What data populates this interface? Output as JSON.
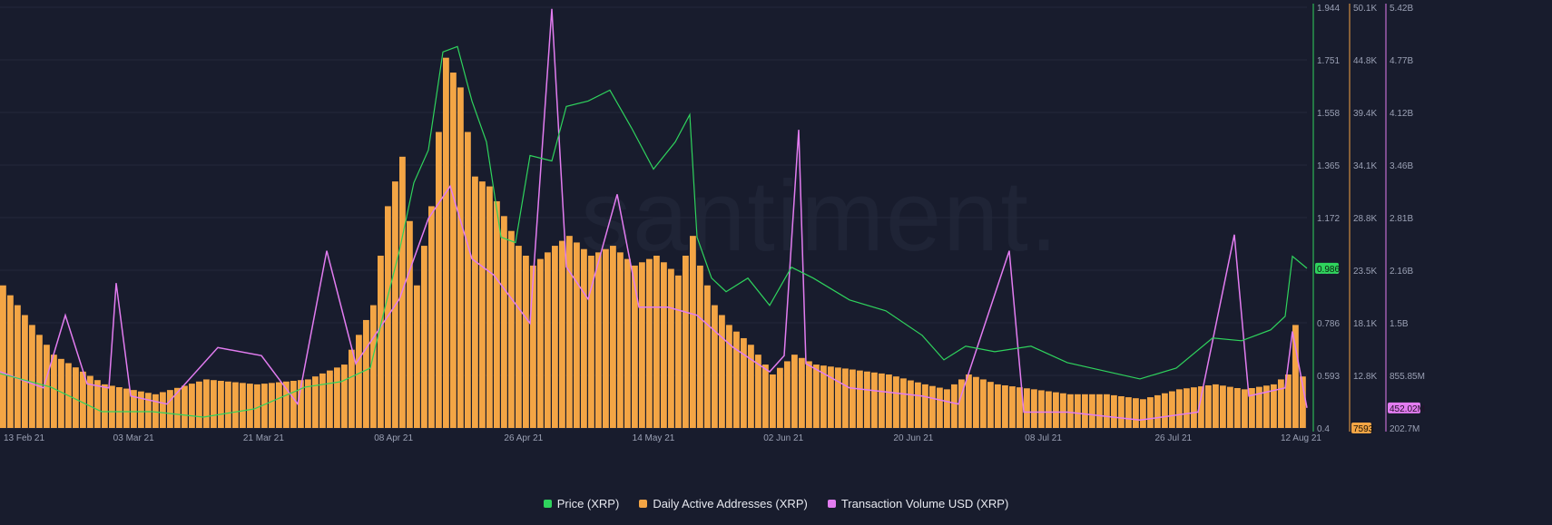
{
  "watermark": "santiment.",
  "colors": {
    "background": "#181c2d",
    "price": "#2fd35d",
    "addresses": "#f3a545",
    "volume": "#e27cf0",
    "grid": "#23283a"
  },
  "chart_data": {
    "type": "bar",
    "title": "",
    "x_tick_labels": [
      "13 Feb 21",
      "03 Mar 21",
      "21 Mar 21",
      "08 Apr 21",
      "26 Apr 21",
      "14 May 21",
      "02 Jun 21",
      "20 Jun 21",
      "08 Jul 21",
      "26 Jul 21",
      "12 Aug 21"
    ],
    "x_range": [
      "2021-02-13",
      "2021-08-12"
    ],
    "grid": true,
    "legend_position": "bottom",
    "axes": {
      "price": {
        "ticks": [
          "1.944",
          "1.751",
          "1.558",
          "1.365",
          "1.172",
          "0.979",
          "0.786",
          "0.593",
          "0.4"
        ],
        "ylim": [
          0.4,
          1.944
        ],
        "current_label": "0.986"
      },
      "addresses": {
        "ticks": [
          "50.1K",
          "44.8K",
          "39.4K",
          "34.1K",
          "28.8K",
          "23.5K",
          "18.1K",
          "12.8K"
        ],
        "ylim": [
          7593,
          50100
        ],
        "current_label": "7593"
      },
      "volume": {
        "ticks": [
          "5.42B",
          "4.77B",
          "4.12B",
          "3.46B",
          "2.81B",
          "2.16B",
          "1.5B",
          "855.85M",
          "202.7M"
        ],
        "ylim": [
          202700000,
          5420000000
        ],
        "current_label": "452.02M"
      }
    },
    "series": [
      {
        "name": "Price (XRP)",
        "kind": "line",
        "axis": "price",
        "points": [
          [
            "2021-02-13",
            0.6
          ],
          [
            "2021-02-20",
            0.55
          ],
          [
            "2021-02-27",
            0.46
          ],
          [
            "2021-03-06",
            0.46
          ],
          [
            "2021-03-13",
            0.44
          ],
          [
            "2021-03-20",
            0.47
          ],
          [
            "2021-03-27",
            0.55
          ],
          [
            "2021-04-01",
            0.57
          ],
          [
            "2021-04-05",
            0.62
          ],
          [
            "2021-04-07",
            0.84
          ],
          [
            "2021-04-09",
            1.05
          ],
          [
            "2021-04-11",
            1.3
          ],
          [
            "2021-04-13",
            1.42
          ],
          [
            "2021-04-15",
            1.78
          ],
          [
            "2021-04-17",
            1.8
          ],
          [
            "2021-04-19",
            1.6
          ],
          [
            "2021-04-21",
            1.45
          ],
          [
            "2021-04-23",
            1.1
          ],
          [
            "2021-04-25",
            1.08
          ],
          [
            "2021-04-27",
            1.4
          ],
          [
            "2021-04-30",
            1.38
          ],
          [
            "2021-05-02",
            1.58
          ],
          [
            "2021-05-05",
            1.6
          ],
          [
            "2021-05-08",
            1.64
          ],
          [
            "2021-05-11",
            1.5
          ],
          [
            "2021-05-14",
            1.35
          ],
          [
            "2021-05-17",
            1.45
          ],
          [
            "2021-05-19",
            1.55
          ],
          [
            "2021-05-20",
            1.1
          ],
          [
            "2021-05-22",
            0.95
          ],
          [
            "2021-05-24",
            0.9
          ],
          [
            "2021-05-27",
            0.95
          ],
          [
            "2021-05-30",
            0.85
          ],
          [
            "2021-06-02",
            0.99
          ],
          [
            "2021-06-05",
            0.95
          ],
          [
            "2021-06-10",
            0.87
          ],
          [
            "2021-06-15",
            0.83
          ],
          [
            "2021-06-20",
            0.74
          ],
          [
            "2021-06-23",
            0.65
          ],
          [
            "2021-06-26",
            0.7
          ],
          [
            "2021-06-30",
            0.68
          ],
          [
            "2021-07-05",
            0.7
          ],
          [
            "2021-07-10",
            0.64
          ],
          [
            "2021-07-15",
            0.61
          ],
          [
            "2021-07-20",
            0.58
          ],
          [
            "2021-07-25",
            0.62
          ],
          [
            "2021-07-30",
            0.73
          ],
          [
            "2021-08-03",
            0.72
          ],
          [
            "2021-08-07",
            0.76
          ],
          [
            "2021-08-09",
            0.81
          ],
          [
            "2021-08-10",
            1.03
          ],
          [
            "2021-08-12",
            0.986
          ]
        ]
      },
      {
        "name": "Daily Active Addresses (XRP)",
        "kind": "bar",
        "axis": "addresses",
        "points": [
          [
            "2021-02-13",
            22000
          ],
          [
            "2021-02-20",
            15000
          ],
          [
            "2021-02-27",
            12000
          ],
          [
            "2021-03-06",
            11000
          ],
          [
            "2021-03-13",
            12500
          ],
          [
            "2021-03-20",
            12000
          ],
          [
            "2021-03-27",
            12500
          ],
          [
            "2021-04-01",
            14000
          ],
          [
            "2021-04-05",
            20000
          ],
          [
            "2021-04-07",
            30000
          ],
          [
            "2021-04-09",
            35000
          ],
          [
            "2021-04-11",
            22000
          ],
          [
            "2021-04-13",
            30000
          ],
          [
            "2021-04-15",
            45000
          ],
          [
            "2021-04-17",
            42000
          ],
          [
            "2021-04-19",
            33000
          ],
          [
            "2021-04-21",
            32000
          ],
          [
            "2021-04-23",
            29000
          ],
          [
            "2021-04-25",
            26000
          ],
          [
            "2021-04-27",
            24000
          ],
          [
            "2021-04-30",
            26000
          ],
          [
            "2021-05-02",
            27000
          ],
          [
            "2021-05-05",
            25000
          ],
          [
            "2021-05-08",
            26000
          ],
          [
            "2021-05-11",
            24000
          ],
          [
            "2021-05-14",
            25000
          ],
          [
            "2021-05-17",
            23000
          ],
          [
            "2021-05-19",
            27000
          ],
          [
            "2021-05-20",
            24000
          ],
          [
            "2021-05-22",
            20000
          ],
          [
            "2021-05-24",
            18000
          ],
          [
            "2021-05-27",
            16000
          ],
          [
            "2021-05-30",
            13000
          ],
          [
            "2021-06-02",
            15000
          ],
          [
            "2021-06-05",
            14000
          ],
          [
            "2021-06-10",
            13500
          ],
          [
            "2021-06-15",
            13000
          ],
          [
            "2021-06-20",
            12000
          ],
          [
            "2021-06-23",
            11500
          ],
          [
            "2021-06-26",
            13000
          ],
          [
            "2021-06-30",
            12000
          ],
          [
            "2021-07-05",
            11500
          ],
          [
            "2021-07-10",
            11000
          ],
          [
            "2021-07-15",
            11000
          ],
          [
            "2021-07-20",
            10500
          ],
          [
            "2021-07-25",
            11500
          ],
          [
            "2021-07-30",
            12000
          ],
          [
            "2021-08-03",
            11500
          ],
          [
            "2021-08-07",
            12000
          ],
          [
            "2021-08-09",
            13000
          ],
          [
            "2021-08-10",
            18000
          ],
          [
            "2021-08-12",
            7593
          ]
        ]
      },
      {
        "name": "Transaction Volume USD (XRP)",
        "kind": "line",
        "axis": "volume",
        "points": [
          [
            "2021-02-13",
            900000000
          ],
          [
            "2021-02-16",
            800000000
          ],
          [
            "2021-02-19",
            700000000
          ],
          [
            "2021-02-22",
            1600000000
          ],
          [
            "2021-02-25",
            750000000
          ],
          [
            "2021-02-28",
            700000000
          ],
          [
            "2021-03-01",
            2000000000
          ],
          [
            "2021-03-03",
            600000000
          ],
          [
            "2021-03-08",
            500000000
          ],
          [
            "2021-03-15",
            1200000000
          ],
          [
            "2021-03-21",
            1100000000
          ],
          [
            "2021-03-26",
            500000000
          ],
          [
            "2021-03-30",
            2400000000
          ],
          [
            "2021-04-03",
            1000000000
          ],
          [
            "2021-04-09",
            1800000000
          ],
          [
            "2021-04-13",
            2800000000
          ],
          [
            "2021-04-16",
            3200000000
          ],
          [
            "2021-04-19",
            2300000000
          ],
          [
            "2021-04-22",
            2100000000
          ],
          [
            "2021-04-27",
            1500000000
          ],
          [
            "2021-04-30",
            5400000000
          ],
          [
            "2021-05-02",
            2200000000
          ],
          [
            "2021-05-05",
            1800000000
          ],
          [
            "2021-05-09",
            3100000000
          ],
          [
            "2021-05-12",
            1700000000
          ],
          [
            "2021-05-16",
            1700000000
          ],
          [
            "2021-05-20",
            1600000000
          ],
          [
            "2021-05-25",
            1200000000
          ],
          [
            "2021-05-30",
            900000000
          ],
          [
            "2021-06-01",
            1100000000
          ],
          [
            "2021-06-03",
            3900000000
          ],
          [
            "2021-06-04",
            1000000000
          ],
          [
            "2021-06-10",
            700000000
          ],
          [
            "2021-06-20",
            600000000
          ],
          [
            "2021-06-25",
            500000000
          ],
          [
            "2021-07-02",
            2400000000
          ],
          [
            "2021-07-04",
            400000000
          ],
          [
            "2021-07-10",
            400000000
          ],
          [
            "2021-07-20",
            300000000
          ],
          [
            "2021-07-28",
            400000000
          ],
          [
            "2021-08-02",
            2600000000
          ],
          [
            "2021-08-04",
            600000000
          ],
          [
            "2021-08-09",
            700000000
          ],
          [
            "2021-08-10",
            1400000000
          ],
          [
            "2021-08-12",
            452020000
          ]
        ]
      }
    ]
  }
}
